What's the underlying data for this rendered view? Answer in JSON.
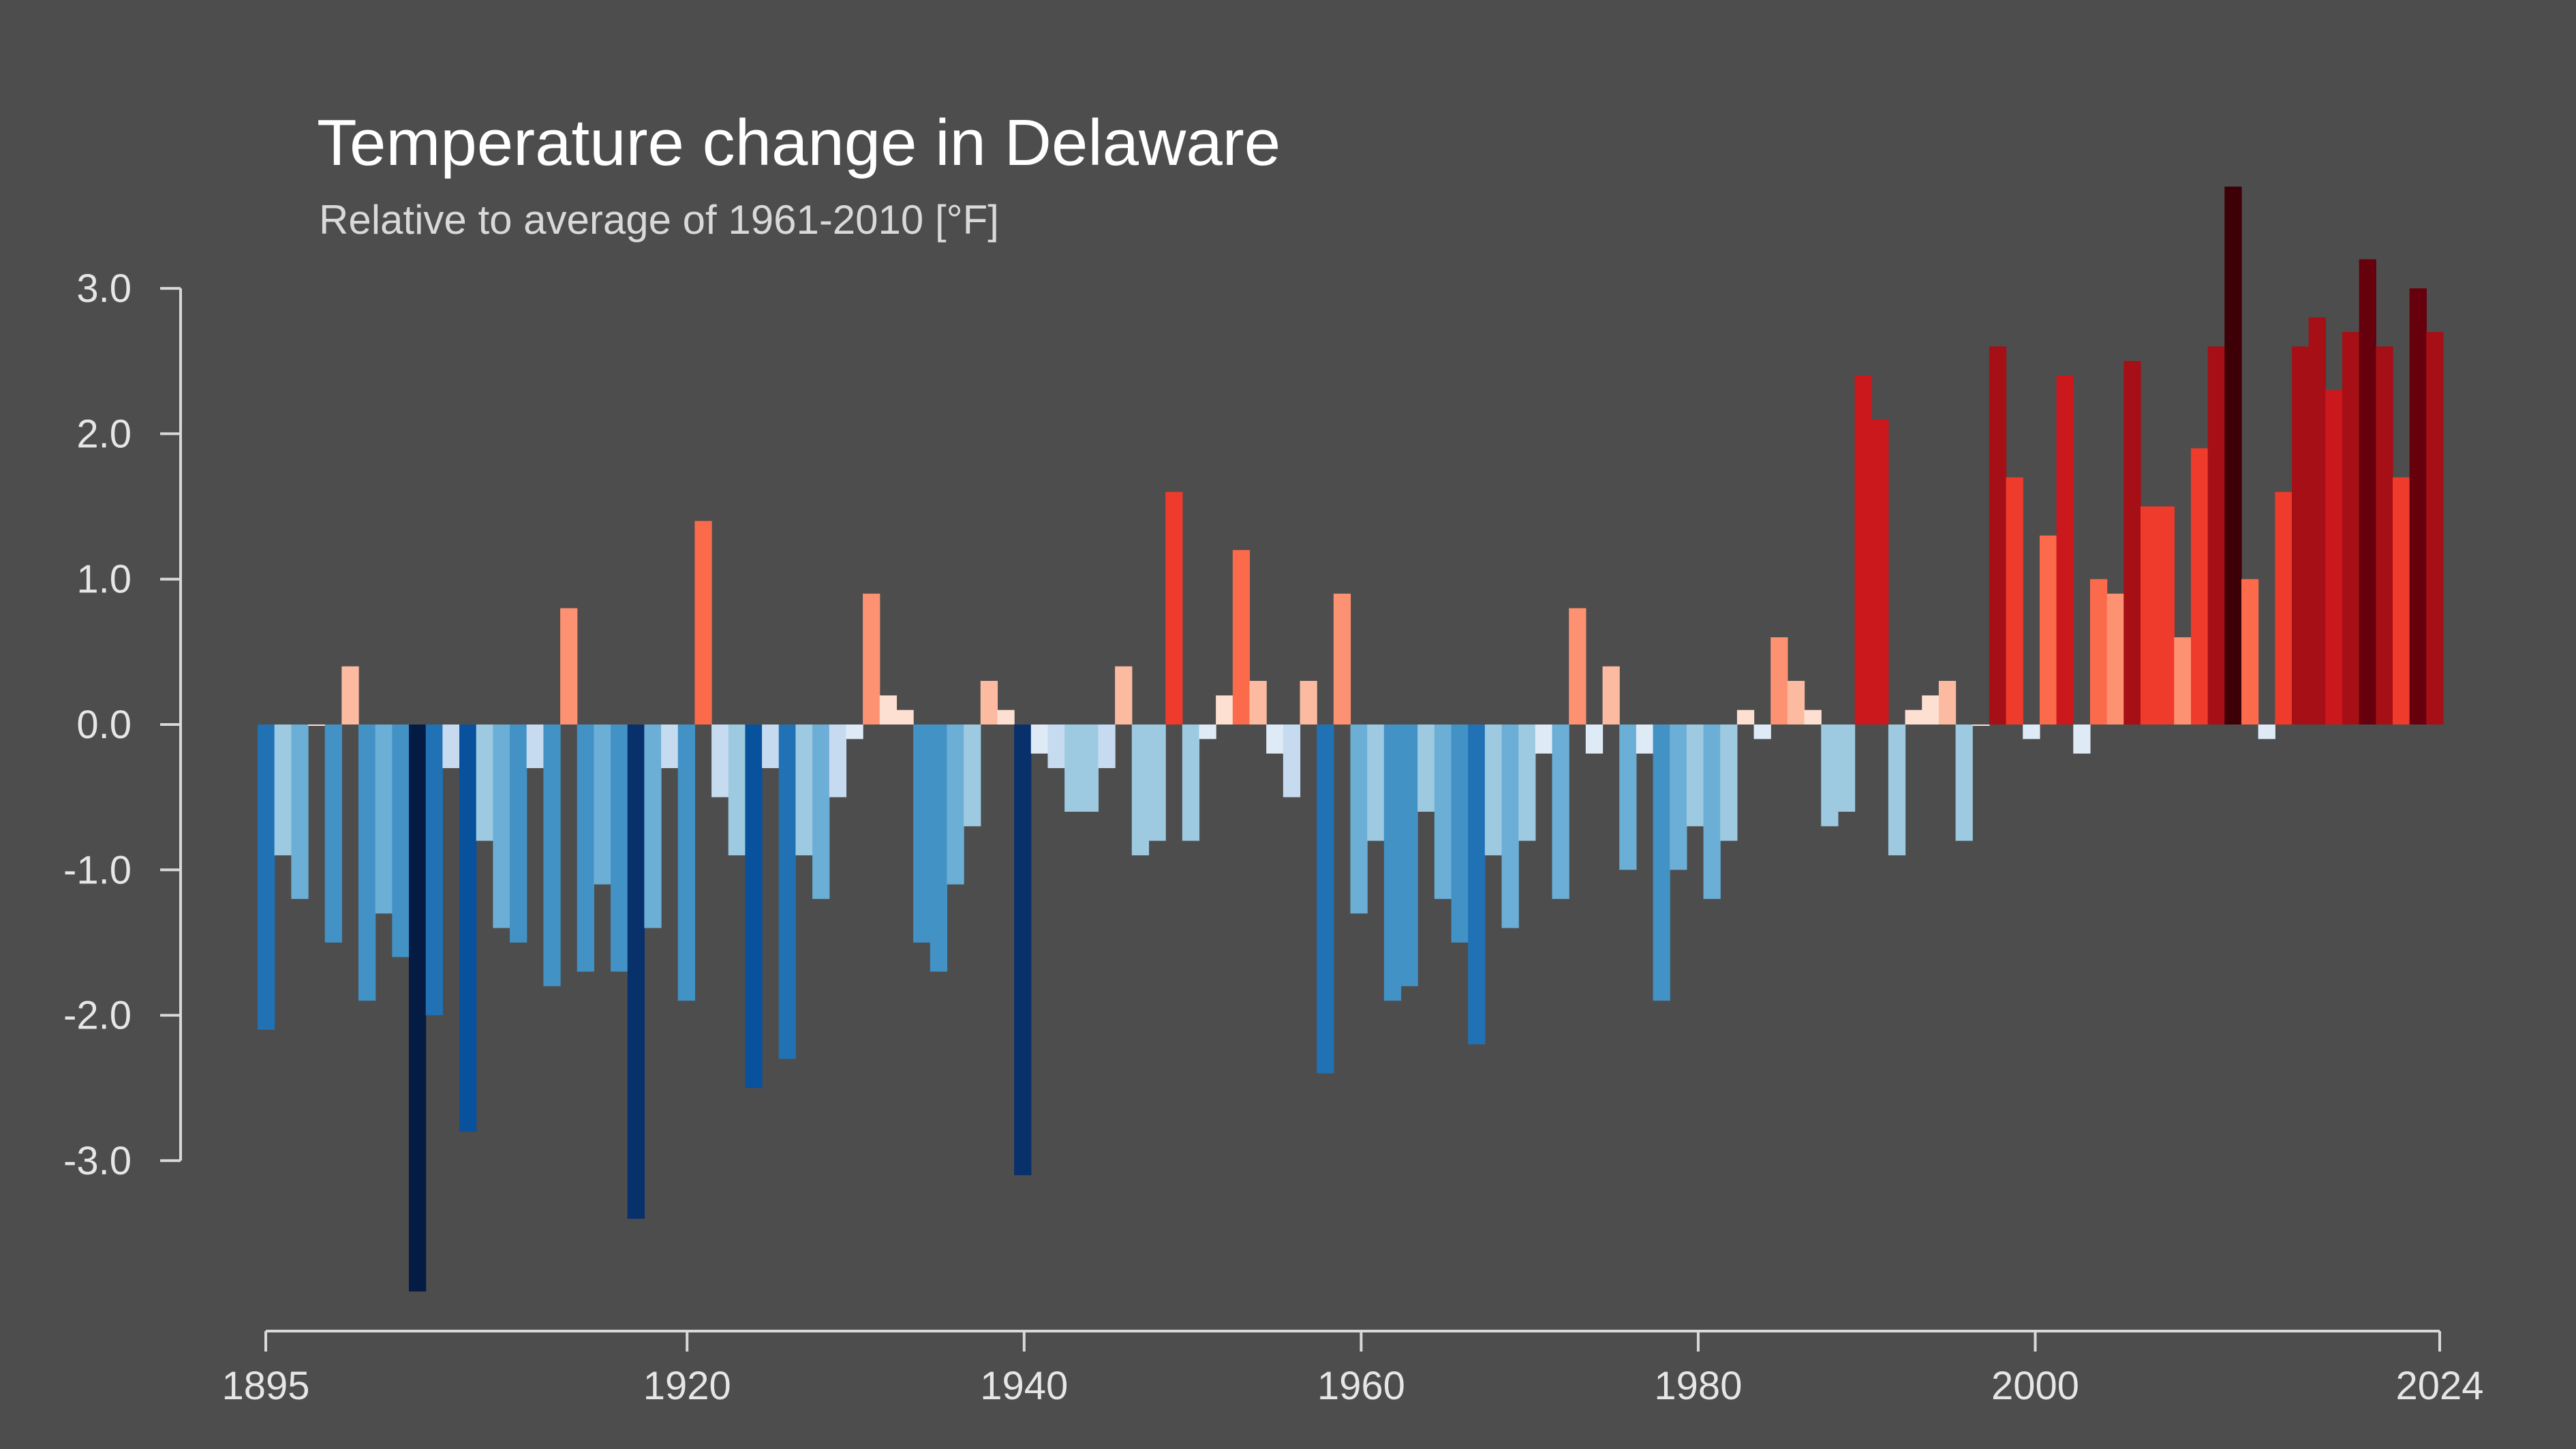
{
  "title": "Temperature change in Delaware",
  "subtitle": "Relative to average of 1961-2010  [°F]",
  "colors": {
    "background": "#4d4d4d",
    "axis": "#d9d9d9",
    "text": "#e6e6e6",
    "warm_scale": [
      "#fee0d2",
      "#fcbba1",
      "#fc9272",
      "#fb6a4a",
      "#ef3b2c",
      "#cb181d",
      "#a50f15",
      "#67000d",
      "#3d0006"
    ],
    "cool_scale": [
      "#deebf7",
      "#c6dbef",
      "#9ecae1",
      "#6baed6",
      "#4292c6",
      "#2171b5",
      "#08519c",
      "#08306b",
      "#041c44"
    ]
  },
  "chart_data": {
    "type": "bar",
    "x_ticks": [
      "1895",
      "1920",
      "1940",
      "1960",
      "1980",
      "2000",
      "2024"
    ],
    "y_ticks": [
      "3.0",
      "2.0",
      "1.0",
      "0.0",
      "-1.0",
      "-2.0",
      "-3.0"
    ],
    "xlim": [
      1895,
      2024
    ],
    "ylim": [
      -3.9,
      3.7
    ],
    "grid": false,
    "legend": "none",
    "years": [
      1895,
      1896,
      1897,
      1898,
      1899,
      1900,
      1901,
      1902,
      1903,
      1904,
      1905,
      1906,
      1907,
      1908,
      1909,
      1910,
      1911,
      1912,
      1913,
      1914,
      1915,
      1916,
      1917,
      1918,
      1919,
      1920,
      1921,
      1922,
      1923,
      1924,
      1925,
      1926,
      1927,
      1928,
      1929,
      1930,
      1931,
      1932,
      1933,
      1934,
      1935,
      1936,
      1937,
      1938,
      1939,
      1940,
      1941,
      1942,
      1943,
      1944,
      1945,
      1946,
      1947,
      1948,
      1949,
      1950,
      1951,
      1952,
      1953,
      1954,
      1955,
      1956,
      1957,
      1958,
      1959,
      1960,
      1961,
      1962,
      1963,
      1964,
      1965,
      1966,
      1967,
      1968,
      1969,
      1970,
      1971,
      1972,
      1973,
      1974,
      1975,
      1976,
      1977,
      1978,
      1979,
      1980,
      1981,
      1982,
      1983,
      1984,
      1985,
      1986,
      1987,
      1988,
      1989,
      1990,
      1991,
      1992,
      1993,
      1994,
      1995,
      1996,
      1997,
      1998,
      1999,
      2000,
      2001,
      2002,
      2003,
      2004,
      2005,
      2006,
      2007,
      2008,
      2009,
      2010,
      2011,
      2012,
      2013,
      2014,
      2015,
      2016,
      2017,
      2018,
      2019,
      2020,
      2021,
      2022,
      2023,
      2024
    ],
    "values": [
      -2.1,
      -0.9,
      -1.2,
      0.0,
      -1.5,
      0.4,
      -1.9,
      -1.3,
      -1.6,
      -3.9,
      -2.0,
      -0.3,
      -2.8,
      -0.8,
      -1.4,
      -1.5,
      -0.3,
      -1.8,
      0.8,
      -1.7,
      -1.1,
      -1.7,
      -3.4,
      -1.4,
      -0.3,
      -1.9,
      1.4,
      -0.5,
      -0.9,
      -2.5,
      -0.3,
      -2.3,
      -0.9,
      -1.2,
      -0.5,
      -0.1,
      0.9,
      0.2,
      0.1,
      -1.5,
      -1.7,
      -1.1,
      -0.7,
      0.3,
      0.1,
      -3.1,
      -0.2,
      -0.3,
      -0.6,
      -0.6,
      -0.3,
      0.4,
      -0.9,
      -0.8,
      1.6,
      -0.8,
      -0.1,
      0.2,
      1.2,
      0.3,
      -0.2,
      -0.5,
      0.3,
      -2.4,
      0.9,
      -1.3,
      -0.8,
      -1.9,
      -1.8,
      -0.6,
      -1.2,
      -1.5,
      -2.2,
      -0.9,
      -1.4,
      -0.8,
      -0.2,
      -1.2,
      0.8,
      -0.2,
      0.4,
      -1.0,
      -0.2,
      -1.9,
      -1.0,
      -0.7,
      -1.2,
      -0.8,
      0.1,
      -0.1,
      0.6,
      0.3,
      0.1,
      -0.7,
      -0.6,
      2.4,
      2.1,
      -0.9,
      0.1,
      0.2,
      0.3,
      -0.8,
      0.0,
      2.6,
      1.7,
      -0.1,
      1.3,
      2.4,
      -0.2,
      1.0,
      0.9,
      2.5,
      1.5,
      1.5,
      0.6,
      1.9,
      2.6,
      3.7,
      1.0,
      -0.1,
      1.6,
      2.6,
      2.8,
      2.3,
      2.7,
      3.2,
      2.6,
      1.7,
      3.0,
      2.7
    ]
  }
}
